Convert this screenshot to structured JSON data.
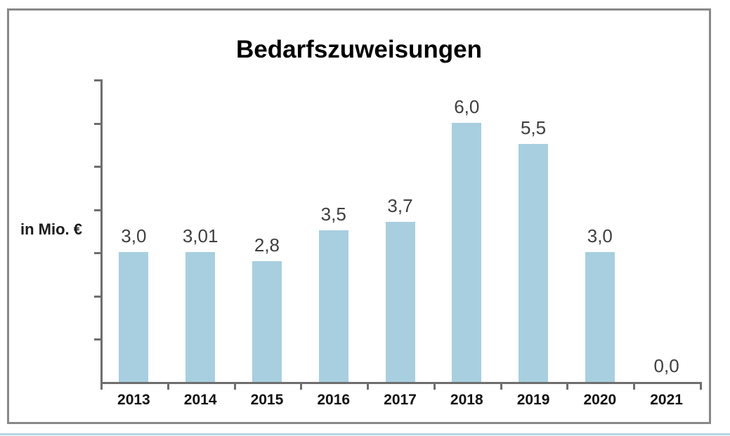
{
  "frame": {
    "border_color": "#898989"
  },
  "accent_line_color": "#b9d5e1",
  "chart_data": {
    "type": "bar",
    "title": "Bedarfszuweisungen",
    "ylabel": "in Mio. €",
    "xlabel": "",
    "categories": [
      "2013",
      "2014",
      "2015",
      "2016",
      "2017",
      "2018",
      "2019",
      "2020",
      "2021"
    ],
    "values": [
      3.0,
      3.01,
      2.8,
      3.5,
      3.7,
      6.0,
      5.5,
      3.0,
      0.0
    ],
    "value_labels": [
      "3,0",
      "3,01",
      "2,8",
      "3,5",
      "3,7",
      "6,0",
      "5,5",
      "3,0",
      "0,0"
    ],
    "ylim": [
      0,
      7
    ],
    "ytick_step": 1,
    "ytick_labels_visible": false,
    "grid": false,
    "legend": "none",
    "bar_color": "#a8cfe0",
    "axis_color": "#6e6e6e",
    "title_color": "#000000",
    "value_label_color": "#3f3f3f",
    "category_label_color": "#111111"
  }
}
